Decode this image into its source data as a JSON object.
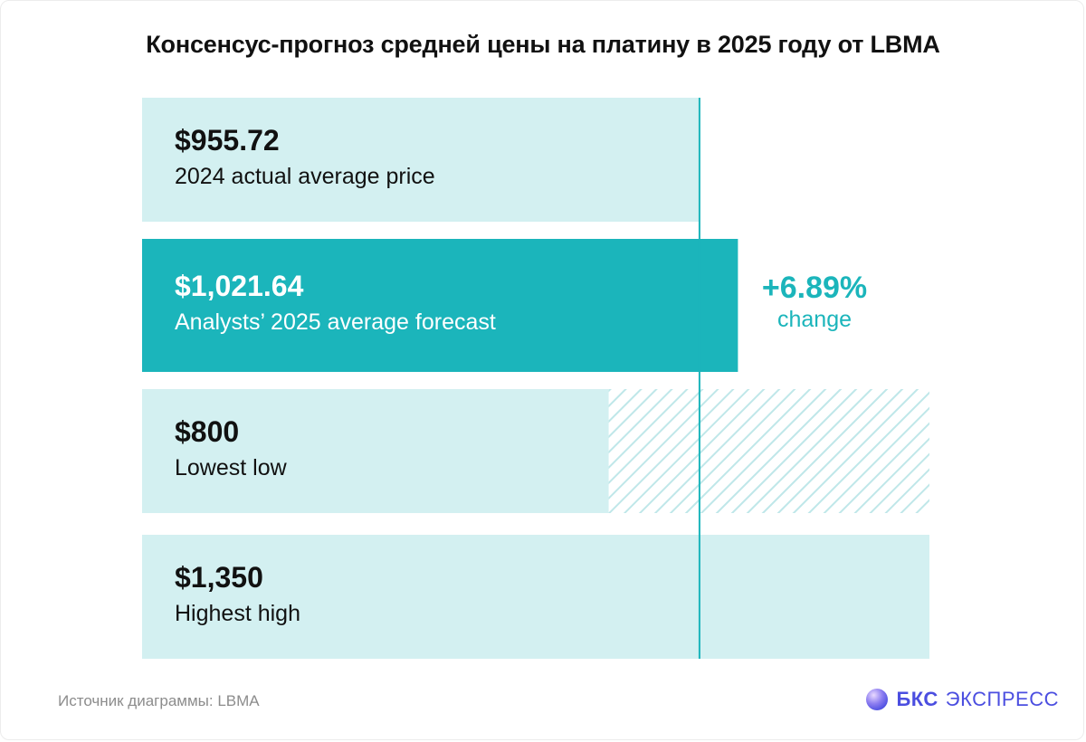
{
  "chart_data": {
    "type": "bar",
    "orientation": "horizontal",
    "title": "Консенсус-прогноз средней цены на платину в 2025 году от LBMA",
    "xlim": [
      0,
      1350
    ],
    "reference_value": 955.72,
    "bars": [
      {
        "value": 955.72,
        "value_label": "$955.72",
        "label": "2024 actual average price",
        "highlight": false
      },
      {
        "value": 1021.64,
        "value_label": "$1,021.64",
        "label": "Analysts’ 2025 average forecast",
        "highlight": true
      },
      {
        "value": 800,
        "value_label": "$800",
        "label": "Lowest low",
        "highlight": false,
        "range_to": 1350
      },
      {
        "value": 1350,
        "value_label": "$1,350",
        "label": "Highest high",
        "highlight": false
      }
    ],
    "annotation": {
      "value": "+6.89%",
      "label": "change"
    },
    "colors": {
      "light": "#d3f0f1",
      "highlight": "#1bb5bb",
      "line": "#1bb5bb",
      "dark_text": "#111111",
      "light_text": "#ffffff",
      "accent_text": "#1bb5bb"
    }
  },
  "footer": {
    "source": "Источник диаграммы: LBMA",
    "brand_name": "БКС",
    "brand_sub": "ЭКСПРЕСС",
    "brand_color": "#4b4ee0"
  }
}
